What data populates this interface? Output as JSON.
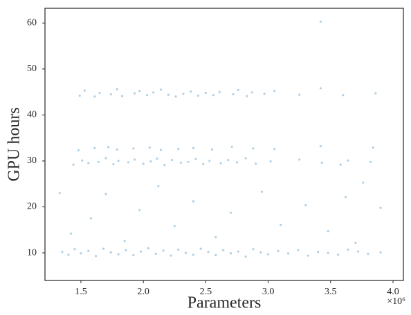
{
  "chart_data": {
    "type": "scatter",
    "x_label": "Parameters",
    "y_label": "GPU hours",
    "x_offset_label": "×10⁶",
    "color": "#1f77b4",
    "alpha": 0.35,
    "xlim": [
      1212000,
      4083000
    ],
    "ylim": [
      4.0,
      63.2
    ],
    "xticks": [
      {
        "value": 1500000,
        "label": "1.5"
      },
      {
        "value": 2000000,
        "label": "2.0"
      },
      {
        "value": 2500000,
        "label": "2.5"
      },
      {
        "value": 3000000,
        "label": "3.0"
      },
      {
        "value": 3500000,
        "label": "3.5"
      },
      {
        "value": 4000000,
        "label": "4.0"
      }
    ],
    "yticks": [
      10,
      20,
      30,
      40,
      50,
      60
    ],
    "grid": false,
    "x": [
      1350000,
      1400000,
      1450000,
      1500000,
      1560000,
      1620000,
      1680000,
      1740000,
      1800000,
      1860000,
      1920000,
      1980000,
      2040000,
      2100000,
      2160000,
      2220000,
      2280000,
      2340000,
      2400000,
      2460000,
      2520000,
      2580000,
      2640000,
      2700000,
      2760000,
      2820000,
      2880000,
      2940000,
      3000000,
      3080000,
      3160000,
      3240000,
      3320000,
      3400000,
      3480000,
      3560000,
      3640000,
      3720000,
      3800000,
      3900000,
      1490000,
      1530000,
      1610000,
      1650000,
      1740000,
      1790000,
      1830000,
      1930000,
      1970000,
      2030000,
      2080000,
      2140000,
      2200000,
      2260000,
      2320000,
      2380000,
      2440000,
      2500000,
      2560000,
      2610000,
      2720000,
      2760000,
      2830000,
      2870000,
      2970000,
      3050000,
      3250000,
      3420000,
      3600000,
      3860000,
      1440000,
      1510000,
      1560000,
      1640000,
      1700000,
      1760000,
      1800000,
      1880000,
      1930000,
      2000000,
      2060000,
      2110000,
      2170000,
      2230000,
      2300000,
      2360000,
      2420000,
      2480000,
      2530000,
      2620000,
      2680000,
      2750000,
      2820000,
      2900000,
      3020000,
      3250000,
      3430000,
      3580000,
      3640000,
      3820000,
      1480000,
      1610000,
      1720000,
      1790000,
      1920000,
      2050000,
      2140000,
      2280000,
      2400000,
      2550000,
      2710000,
      2880000,
      3050000,
      3420000,
      3840000,
      1330000,
      1420000,
      1580000,
      1700000,
      1850000,
      1970000,
      2120000,
      2250000,
      2400000,
      2580000,
      2700000,
      2950000,
      3100000,
      3300000,
      3480000,
      3620000,
      3700000,
      3760000,
      3900000,
      3420000
    ],
    "y": [
      10.2,
      9.6,
      10.8,
      9.9,
      10.4,
      9.3,
      10.9,
      10.1,
      9.7,
      10.6,
      9.5,
      10.3,
      11.0,
      9.8,
      10.5,
      9.4,
      10.7,
      10.0,
      9.6,
      10.9,
      10.2,
      9.5,
      10.6,
      9.9,
      10.3,
      9.2,
      10.8,
      10.1,
      9.7,
      10.4,
      9.9,
      10.6,
      9.4,
      10.2,
      10.0,
      9.6,
      10.7,
      10.3,
      9.8,
      10.1,
      44.2,
      45.3,
      44.0,
      44.8,
      44.5,
      45.6,
      44.1,
      44.7,
      45.2,
      44.3,
      44.9,
      45.5,
      44.4,
      44.0,
      44.6,
      45.1,
      44.2,
      44.8,
      44.3,
      45.0,
      44.5,
      45.4,
      44.1,
      44.9,
      44.6,
      45.2,
      44.4,
      45.8,
      44.3,
      44.7,
      29.2,
      30.1,
      29.5,
      29.8,
      30.6,
      29.3,
      30.0,
      29.7,
      30.3,
      29.4,
      29.9,
      30.5,
      29.1,
      30.2,
      29.6,
      29.8,
      30.4,
      29.3,
      30.0,
      29.5,
      30.2,
      29.7,
      30.6,
      29.4,
      29.9,
      30.3,
      29.6,
      29.2,
      30.1,
      29.8,
      32.3,
      32.8,
      33.0,
      32.5,
      32.7,
      32.9,
      32.4,
      32.6,
      32.8,
      32.5,
      33.1,
      32.7,
      32.6,
      33.2,
      32.9,
      23.0,
      14.2,
      17.5,
      22.8,
      12.6,
      19.3,
      24.5,
      15.8,
      21.2,
      13.4,
      18.7,
      23.3,
      16.1,
      20.4,
      14.7,
      22.1,
      12.2,
      25.3,
      19.8,
      60.3
    ]
  }
}
